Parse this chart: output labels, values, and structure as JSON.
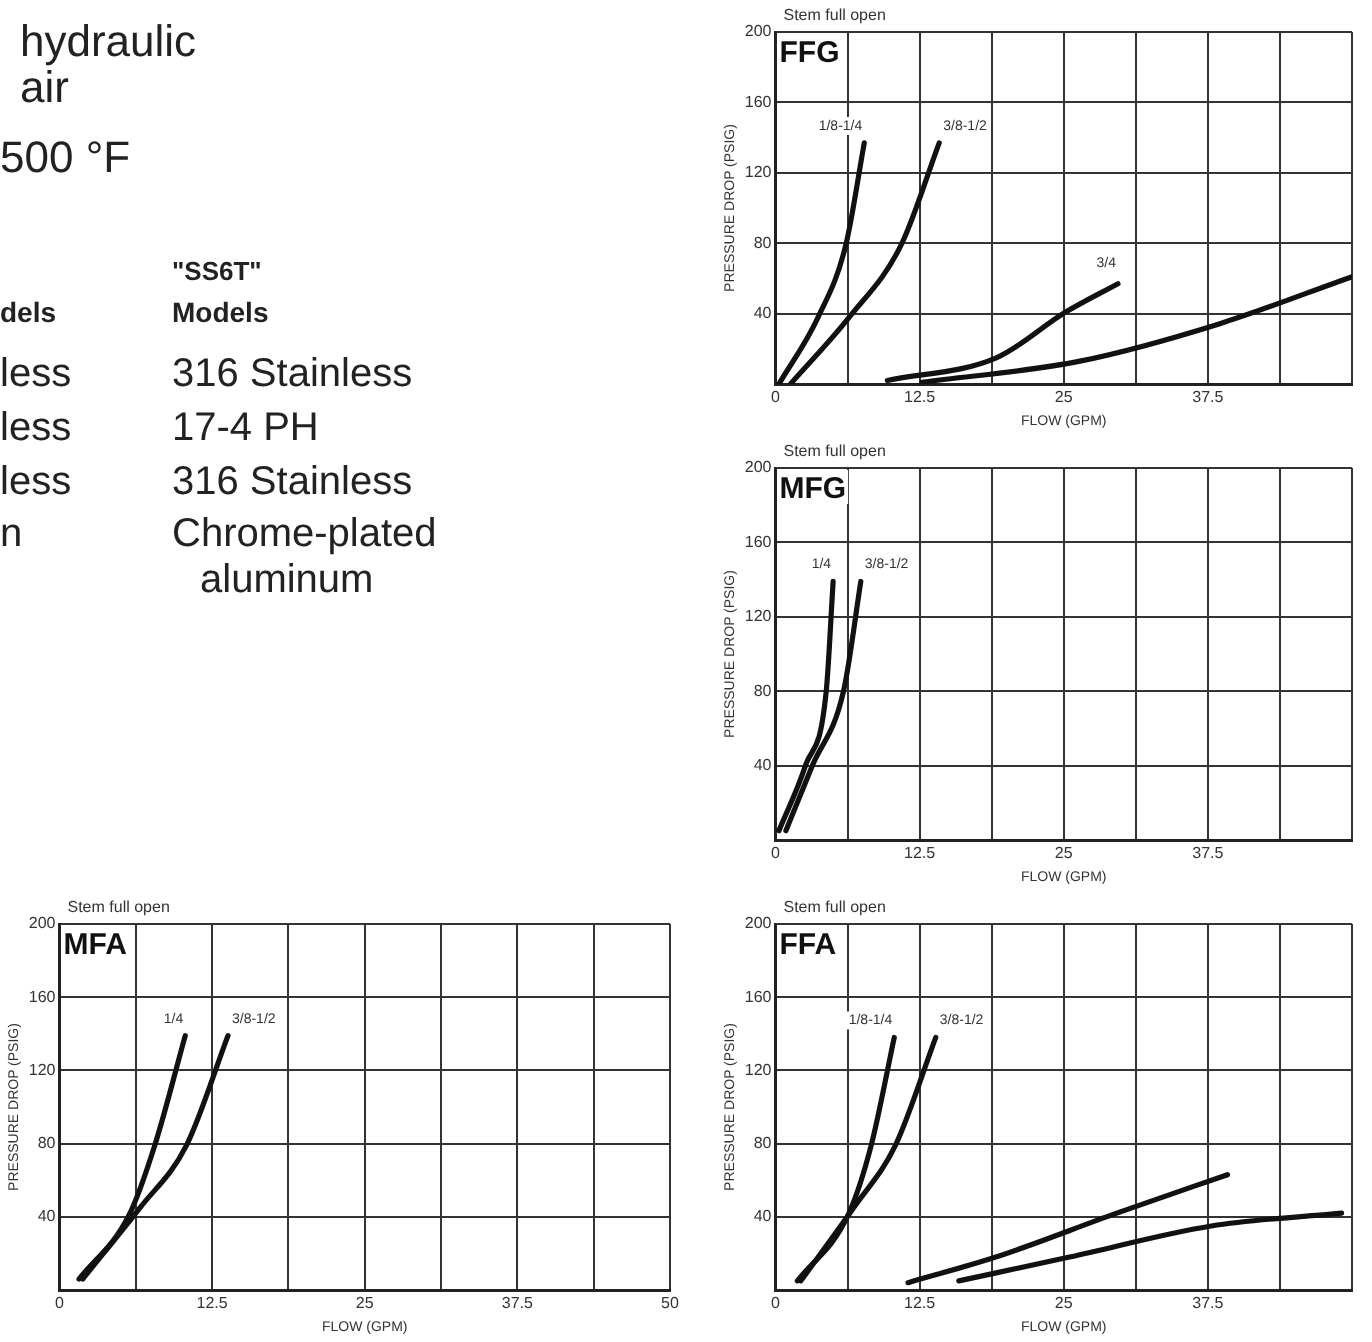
{
  "chart_data": [
    {
      "type": "other",
      "annotations": [
        "hydraulic",
        "air",
        "500 °F",
        "\"SS6T\"",
        "dels",
        "Models",
        "less",
        "316 Stainless",
        "less",
        "17-4 PH",
        "less",
        "316 Stainless",
        "n",
        "Chrome-plated",
        "aluminum"
      ]
    },
    {
      "type": "line",
      "title": "FFG",
      "subtitle": "Stem full open",
      "xlabel": "FLOW (GPM)",
      "ylabel": "PRESSURE DROP (PSIG)",
      "xlim": [
        0,
        50
      ],
      "ylim": [
        0,
        200
      ],
      "xticks": [
        0,
        {
          "value": 6.25,
          "label": null
        },
        12.5,
        {
          "value": 18.75,
          "label": null
        },
        25,
        {
          "value": 31.25,
          "label": null
        },
        37.5,
        {
          "value": 43.75,
          "label": null
        },
        {
          "value": 50,
          "label": null
        }
      ],
      "yticks": [
        40,
        80,
        120,
        160,
        200
      ],
      "grid": true,
      "series": [
        {
          "name": "1/8-1/4",
          "color": "#111111",
          "x": [
            0.3,
            3.7,
            6.1,
            7.7
          ],
          "values": [
            0,
            38,
            79,
            137
          ]
        },
        {
          "name": "3/8-1/2",
          "color": "#111111",
          "x": [
            1.3,
            6.4,
            10.9,
            14.2
          ],
          "values": [
            0,
            38,
            79,
            137
          ]
        },
        {
          "name": "3/4",
          "color": "#111111",
          "x": [
            9.7,
            19.2,
            25.2,
            29.7
          ],
          "values": [
            2,
            15,
            41,
            57
          ]
        },
        {
          "color": "#111111",
          "x": [
            12.7,
            26.4,
            38.4,
            50
          ],
          "values": [
            1,
            13,
            34,
            61
          ]
        }
      ]
    },
    {
      "type": "line",
      "title": "MFG",
      "subtitle": "Stem full open",
      "xlabel": "FLOW (GPM)",
      "ylabel": "PRESSURE DROP (PSIG)",
      "xlim": [
        0,
        50
      ],
      "ylim": [
        0,
        200
      ],
      "xticks": [
        0,
        {
          "value": 6.25,
          "label": null
        },
        12.5,
        {
          "value": 18.75,
          "label": null
        },
        25,
        {
          "value": 31.25,
          "label": null
        },
        37.5,
        {
          "value": 43.75,
          "label": null
        },
        {
          "value": 50,
          "label": null
        }
      ],
      "yticks": [
        40,
        80,
        120,
        160,
        200
      ],
      "grid": true,
      "series": [
        {
          "name": "1/4",
          "color": "#111111",
          "x": [
            0.3,
            2.6,
            4.4,
            5
          ],
          "values": [
            5,
            40,
            80,
            139
          ]
        },
        {
          "name": "3/8-1/2",
          "color": "#111111",
          "x": [
            0.9,
            3.2,
            5.9,
            7.4
          ],
          "values": [
            5,
            40,
            80,
            139
          ]
        }
      ]
    },
    {
      "type": "line",
      "title": "MFA",
      "subtitle": "Stem full open",
      "xlabel": "FLOW (GPM)",
      "ylabel": "PRESSURE DROP (PSIG)",
      "xlim": [
        0,
        50
      ],
      "ylim": [
        0,
        200
      ],
      "xticks": [
        0,
        {
          "value": 6.25,
          "label": null
        },
        12.5,
        {
          "value": 18.75,
          "label": null
        },
        25,
        {
          "value": 31.25,
          "label": null
        },
        37.5,
        {
          "value": 43.75,
          "label": null
        },
        50
      ],
      "yticks": [
        40,
        80,
        120,
        160,
        200
      ],
      "grid": true,
      "series": [
        {
          "name": "1/4",
          "color": "#111111",
          "x": [
            1.6,
            5.7,
            7.8,
            10.3
          ],
          "values": [
            6,
            41,
            79,
            139
          ]
        },
        {
          "name": "3/8-1/2",
          "color": "#111111",
          "x": [
            1.9,
            6.6,
            10.4,
            13.8
          ],
          "values": [
            6,
            45,
            79,
            139
          ]
        }
      ]
    },
    {
      "type": "line",
      "title": "FFA",
      "subtitle": "Stem full open",
      "xlabel": "FLOW (GPM)",
      "ylabel": "PRESSURE DROP (PSIG)",
      "xlim": [
        0,
        50
      ],
      "ylim": [
        0,
        200
      ],
      "xticks": [
        0,
        {
          "value": 6.25,
          "label": null
        },
        12.5,
        {
          "value": 18.75,
          "label": null
        },
        25,
        {
          "value": 31.25,
          "label": null
        },
        37.5,
        {
          "value": 43.75,
          "label": null
        },
        {
          "value": 50,
          "label": null
        }
      ],
      "yticks": [
        40,
        80,
        120,
        160,
        200
      ],
      "grid": true,
      "series": [
        {
          "name": "1/8-1/4",
          "color": "#111111",
          "x": [
            1.9,
            6.3,
            8.3,
            10.3
          ],
          "values": [
            5,
            41,
            79,
            138
          ]
        },
        {
          "name": "3/8-1/2",
          "color": "#111111",
          "x": [
            2.2,
            6.9,
            10.4,
            13.9
          ],
          "values": [
            5,
            46,
            79,
            138
          ]
        },
        {
          "color": "#111111",
          "x": [
            11.5,
            19.1,
            29.6,
            39.2
          ],
          "values": [
            4,
            18,
            42,
            63
          ]
        },
        {
          "color": "#111111",
          "x": [
            15.9,
            25.5,
            37.8,
            49.1
          ],
          "values": [
            5,
            18,
            35,
            42
          ]
        }
      ]
    }
  ]
}
